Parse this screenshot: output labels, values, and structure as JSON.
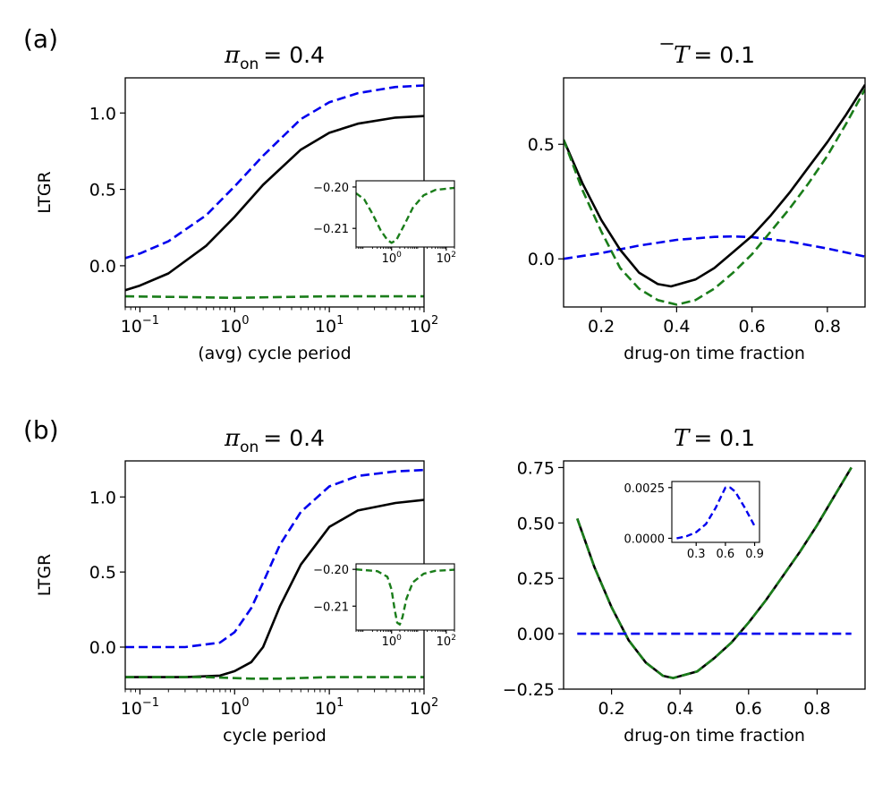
{
  "panel_labels": {
    "a": "(a)",
    "b": "(b)"
  },
  "colors": {
    "blue": "#0000ee",
    "black": "#000000",
    "green": "#1a7d1a"
  },
  "chart_data": [
    {
      "id": "a_left",
      "type": "line",
      "title": {
        "sym": "π",
        "sub": "on",
        "eq": "= 0.4"
      },
      "xlabel": "(avg) cycle period",
      "ylabel": "LTGR",
      "xscale": "log",
      "xlim": [
        0.07,
        100
      ],
      "ylim": [
        -0.27,
        1.23
      ],
      "xticks": [
        {
          "v": 0.1,
          "base": "10",
          "exp": "−1"
        },
        {
          "v": 1,
          "base": "10",
          "exp": "0"
        },
        {
          "v": 10,
          "base": "10",
          "exp": "1"
        },
        {
          "v": 100,
          "base": "10",
          "exp": "2"
        }
      ],
      "yticks": [
        {
          "v": 0,
          "label": "0.0"
        },
        {
          "v": 0.5,
          "label": "0.5"
        },
        {
          "v": 1,
          "label": "1.0"
        }
      ],
      "series": [
        {
          "name": "blue",
          "style": "dashed",
          "x": [
            0.07,
            0.1,
            0.2,
            0.5,
            1,
            2,
            5,
            10,
            20,
            50,
            100
          ],
          "y": [
            0.05,
            0.08,
            0.16,
            0.33,
            0.52,
            0.72,
            0.96,
            1.07,
            1.13,
            1.17,
            1.18
          ]
        },
        {
          "name": "black",
          "style": "solid",
          "x": [
            0.07,
            0.1,
            0.2,
            0.5,
            1,
            2,
            5,
            10,
            20,
            50,
            100
          ],
          "y": [
            -0.16,
            -0.13,
            -0.05,
            0.13,
            0.32,
            0.53,
            0.76,
            0.87,
            0.93,
            0.97,
            0.98
          ]
        },
        {
          "name": "green",
          "style": "dashed",
          "x": [
            0.07,
            0.3,
            1,
            3,
            10,
            30,
            100
          ],
          "y": [
            -0.2,
            -0.205,
            -0.21,
            -0.205,
            -0.2,
            -0.2,
            -0.2
          ]
        }
      ],
      "inset": {
        "xscale": "log",
        "xlim": [
          0.05,
          200
        ],
        "ylim": [
          -0.2145,
          -0.1985
        ],
        "xticks": [
          {
            "v": 1,
            "base": "10",
            "exp": "0"
          },
          {
            "v": 100,
            "base": "10",
            "exp": "2"
          }
        ],
        "yticks": [
          {
            "v": -0.2,
            "label": "−0.20"
          },
          {
            "v": -0.21,
            "label": "−0.21"
          }
        ],
        "series": [
          {
            "name": "green",
            "style": "dashed",
            "x": [
              0.05,
              0.1,
              0.2,
              0.4,
              0.7,
              1,
              1.5,
              3,
              6,
              15,
              40,
              200
            ],
            "y": [
              -0.2015,
              -0.203,
              -0.2065,
              -0.2105,
              -0.2128,
              -0.2135,
              -0.2128,
              -0.209,
              -0.205,
              -0.202,
              -0.2007,
              -0.2002
            ]
          }
        ]
      }
    },
    {
      "id": "a_right",
      "type": "line",
      "title": {
        "sym": "T",
        "sub": "",
        "eq": "= 0.1",
        "overline": true
      },
      "xlabel": "drug-on time fraction",
      "ylabel": "",
      "xscale": "linear",
      "xlim": [
        0.1,
        0.9
      ],
      "ylim": [
        -0.21,
        0.79
      ],
      "xticks": [
        {
          "v": 0.2,
          "label": "0.2"
        },
        {
          "v": 0.4,
          "label": "0.4"
        },
        {
          "v": 0.6,
          "label": "0.6"
        },
        {
          "v": 0.8,
          "label": "0.8"
        }
      ],
      "yticks": [
        {
          "v": 0,
          "label": "0.0"
        },
        {
          "v": 0.5,
          "label": "0.5"
        }
      ],
      "series": [
        {
          "name": "blue",
          "style": "dashed",
          "x": [
            0.1,
            0.2,
            0.3,
            0.4,
            0.5,
            0.55,
            0.6,
            0.7,
            0.8,
            0.9
          ],
          "y": [
            0.0,
            0.025,
            0.058,
            0.083,
            0.096,
            0.098,
            0.095,
            0.075,
            0.045,
            0.01
          ]
        },
        {
          "name": "black",
          "style": "solid",
          "x": [
            0.1,
            0.15,
            0.2,
            0.25,
            0.3,
            0.35,
            0.385,
            0.45,
            0.5,
            0.55,
            0.6,
            0.65,
            0.7,
            0.75,
            0.8,
            0.85,
            0.9
          ],
          "y": [
            0.52,
            0.33,
            0.17,
            0.04,
            -0.06,
            -0.11,
            -0.12,
            -0.09,
            -0.04,
            0.03,
            0.1,
            0.19,
            0.29,
            0.4,
            0.51,
            0.63,
            0.76
          ]
        },
        {
          "name": "green",
          "style": "dashed",
          "x": [
            0.1,
            0.15,
            0.2,
            0.25,
            0.3,
            0.35,
            0.4,
            0.45,
            0.5,
            0.55,
            0.6,
            0.65,
            0.7,
            0.75,
            0.8,
            0.85,
            0.9
          ],
          "y": [
            0.52,
            0.3,
            0.12,
            -0.04,
            -0.13,
            -0.18,
            -0.2,
            -0.18,
            -0.13,
            -0.06,
            0.02,
            0.12,
            0.22,
            0.33,
            0.45,
            0.59,
            0.74
          ]
        }
      ]
    },
    {
      "id": "b_left",
      "type": "line",
      "title": {
        "sym": "π",
        "sub": "on",
        "eq": "= 0.4"
      },
      "xlabel": "cycle period",
      "ylabel": "LTGR",
      "xscale": "log",
      "xlim": [
        0.07,
        100
      ],
      "ylim": [
        -0.28,
        1.24
      ],
      "xticks": [
        {
          "v": 0.1,
          "base": "10",
          "exp": "−1"
        },
        {
          "v": 1,
          "base": "10",
          "exp": "0"
        },
        {
          "v": 10,
          "base": "10",
          "exp": "1"
        },
        {
          "v": 100,
          "base": "10",
          "exp": "2"
        }
      ],
      "yticks": [
        {
          "v": 0,
          "label": "0.0"
        },
        {
          "v": 0.5,
          "label": "0.5"
        },
        {
          "v": 1,
          "label": "1.0"
        }
      ],
      "series": [
        {
          "name": "blue",
          "style": "dashed",
          "x": [
            0.07,
            0.3,
            0.7,
            1,
            1.5,
            2,
            3,
            5,
            10,
            20,
            50,
            100
          ],
          "y": [
            0.0,
            0.0,
            0.03,
            0.1,
            0.26,
            0.43,
            0.68,
            0.9,
            1.07,
            1.14,
            1.17,
            1.18
          ]
        },
        {
          "name": "black",
          "style": "solid",
          "x": [
            0.07,
            0.3,
            0.7,
            1,
            1.5,
            2,
            3,
            5,
            10,
            20,
            50,
            100
          ],
          "y": [
            -0.2,
            -0.2,
            -0.19,
            -0.16,
            -0.1,
            0.0,
            0.27,
            0.55,
            0.8,
            0.91,
            0.96,
            0.98
          ]
        },
        {
          "name": "green",
          "style": "dashed",
          "x": [
            0.07,
            0.5,
            1.5,
            3,
            10,
            100
          ],
          "y": [
            -0.2,
            -0.2,
            -0.21,
            -0.21,
            -0.2,
            -0.2
          ]
        }
      ],
      "inset": {
        "xscale": "log",
        "xlim": [
          0.05,
          200
        ],
        "ylim": [
          -0.2165,
          -0.1985
        ],
        "xticks": [
          {
            "v": 1,
            "base": "10",
            "exp": "0"
          },
          {
            "v": 100,
            "base": "10",
            "exp": "2"
          }
        ],
        "yticks": [
          {
            "v": -0.2,
            "label": "−0.20"
          },
          {
            "v": -0.21,
            "label": "−0.21"
          }
        ],
        "series": [
          {
            "name": "green",
            "style": "dashed",
            "x": [
              0.05,
              0.3,
              0.7,
              1,
              1.3,
              1.6,
              2,
              2.5,
              3.5,
              6,
              15,
              40,
              200
            ],
            "y": [
              -0.2,
              -0.2005,
              -0.202,
              -0.2055,
              -0.211,
              -0.2145,
              -0.215,
              -0.213,
              -0.208,
              -0.2035,
              -0.2012,
              -0.2004,
              -0.2001
            ]
          }
        ]
      }
    },
    {
      "id": "b_right",
      "type": "line",
      "title": {
        "sym": "T",
        "sub": "",
        "eq": "= 0.1"
      },
      "xlabel": "drug-on time fraction",
      "ylabel": "",
      "xscale": "linear",
      "xlim": [
        0.06,
        0.94
      ],
      "ylim": [
        -0.25,
        0.78
      ],
      "xticks": [
        {
          "v": 0.2,
          "label": "0.2"
        },
        {
          "v": 0.4,
          "label": "0.4"
        },
        {
          "v": 0.6,
          "label": "0.6"
        },
        {
          "v": 0.8,
          "label": "0.8"
        }
      ],
      "yticks": [
        {
          "v": -0.25,
          "label": "−0.25"
        },
        {
          "v": 0,
          "label": "0.00"
        },
        {
          "v": 0.25,
          "label": "0.25"
        },
        {
          "v": 0.5,
          "label": "0.50"
        },
        {
          "v": 0.75,
          "label": "0.75"
        }
      ],
      "series": [
        {
          "name": "black",
          "style": "solid",
          "x": [
            0.1,
            0.15,
            0.2,
            0.25,
            0.3,
            0.35,
            0.38,
            0.45,
            0.5,
            0.55,
            0.6,
            0.65,
            0.7,
            0.75,
            0.8,
            0.85,
            0.9
          ],
          "y": [
            0.52,
            0.3,
            0.12,
            -0.03,
            -0.13,
            -0.19,
            -0.2,
            -0.17,
            -0.11,
            -0.04,
            0.05,
            0.15,
            0.26,
            0.37,
            0.49,
            0.62,
            0.75
          ]
        },
        {
          "name": "green",
          "style": "dashed",
          "x": [
            0.1,
            0.15,
            0.2,
            0.25,
            0.3,
            0.35,
            0.38,
            0.45,
            0.5,
            0.55,
            0.6,
            0.65,
            0.7,
            0.75,
            0.8,
            0.85,
            0.9
          ],
          "y": [
            0.52,
            0.3,
            0.12,
            -0.03,
            -0.13,
            -0.19,
            -0.2,
            -0.17,
            -0.11,
            -0.04,
            0.05,
            0.15,
            0.26,
            0.37,
            0.49,
            0.62,
            0.75
          ]
        },
        {
          "name": "blue",
          "style": "dashed",
          "x": [
            0.1,
            0.3,
            0.5,
            0.7,
            0.9
          ],
          "y": [
            0.0,
            0.0,
            0.0,
            0.0,
            0.0
          ]
        }
      ],
      "inset": {
        "xscale": "linear",
        "xlim": [
          0.05,
          0.95
        ],
        "ylim": [
          -0.0002,
          0.0028
        ],
        "xticks": [
          {
            "v": 0.3,
            "label": "0.3"
          },
          {
            "v": 0.6,
            "label": "0.6"
          },
          {
            "v": 0.9,
            "label": "0.9"
          }
        ],
        "yticks": [
          {
            "v": 0,
            "label": "0.0000"
          },
          {
            "v": 0.0025,
            "label": "0.0025"
          }
        ],
        "series": [
          {
            "name": "blue",
            "style": "dashed",
            "x": [
              0.1,
              0.2,
              0.3,
              0.4,
              0.5,
              0.55,
              0.6,
              0.65,
              0.7,
              0.8,
              0.9
            ],
            "y": [
              0.0,
              0.0001,
              0.0003,
              0.0007,
              0.0015,
              0.002,
              0.0025,
              0.0025,
              0.0023,
              0.0015,
              0.0006
            ]
          }
        ]
      }
    }
  ]
}
